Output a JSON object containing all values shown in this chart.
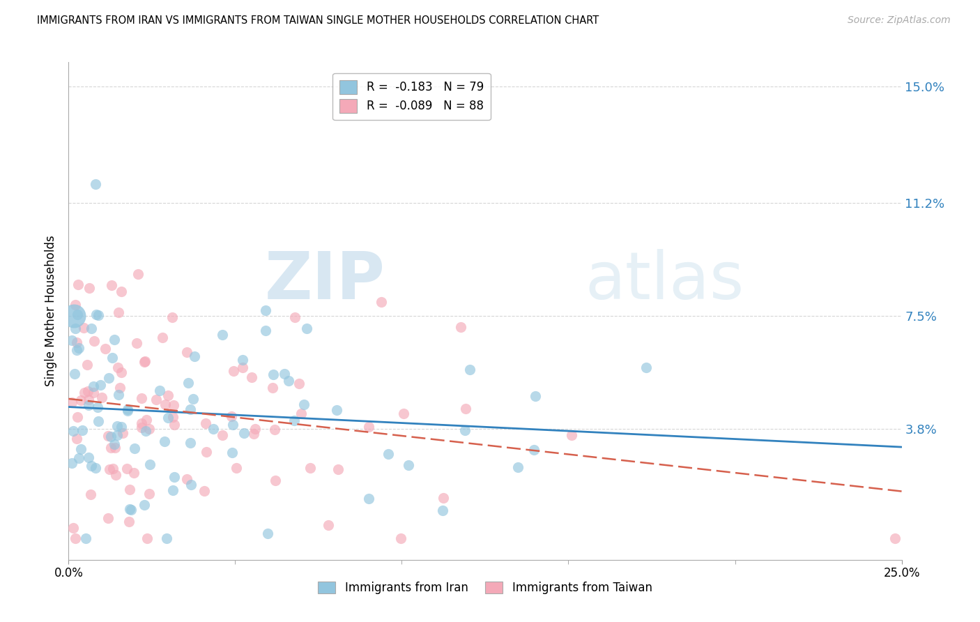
{
  "title": "IMMIGRANTS FROM IRAN VS IMMIGRANTS FROM TAIWAN SINGLE MOTHER HOUSEHOLDS CORRELATION CHART",
  "source": "Source: ZipAtlas.com",
  "ylabel": "Single Mother Households",
  "yticks": [
    0.0,
    0.038,
    0.075,
    0.112,
    0.15
  ],
  "ytick_labels": [
    "",
    "3.8%",
    "7.5%",
    "11.2%",
    "15.0%"
  ],
  "xlim": [
    0.0,
    0.25
  ],
  "ylim": [
    -0.005,
    0.158
  ],
  "iran_R": -0.183,
  "iran_N": 79,
  "taiwan_R": -0.089,
  "taiwan_N": 88,
  "iran_color": "#92c5de",
  "taiwan_color": "#f4a9b8",
  "iran_line_color": "#3282be",
  "taiwan_line_color": "#d6604d",
  "watermark_zip": "ZIP",
  "watermark_atlas": "atlas",
  "background_color": "#ffffff",
  "grid_color": "#cccccc",
  "right_tick_color": "#3282be"
}
